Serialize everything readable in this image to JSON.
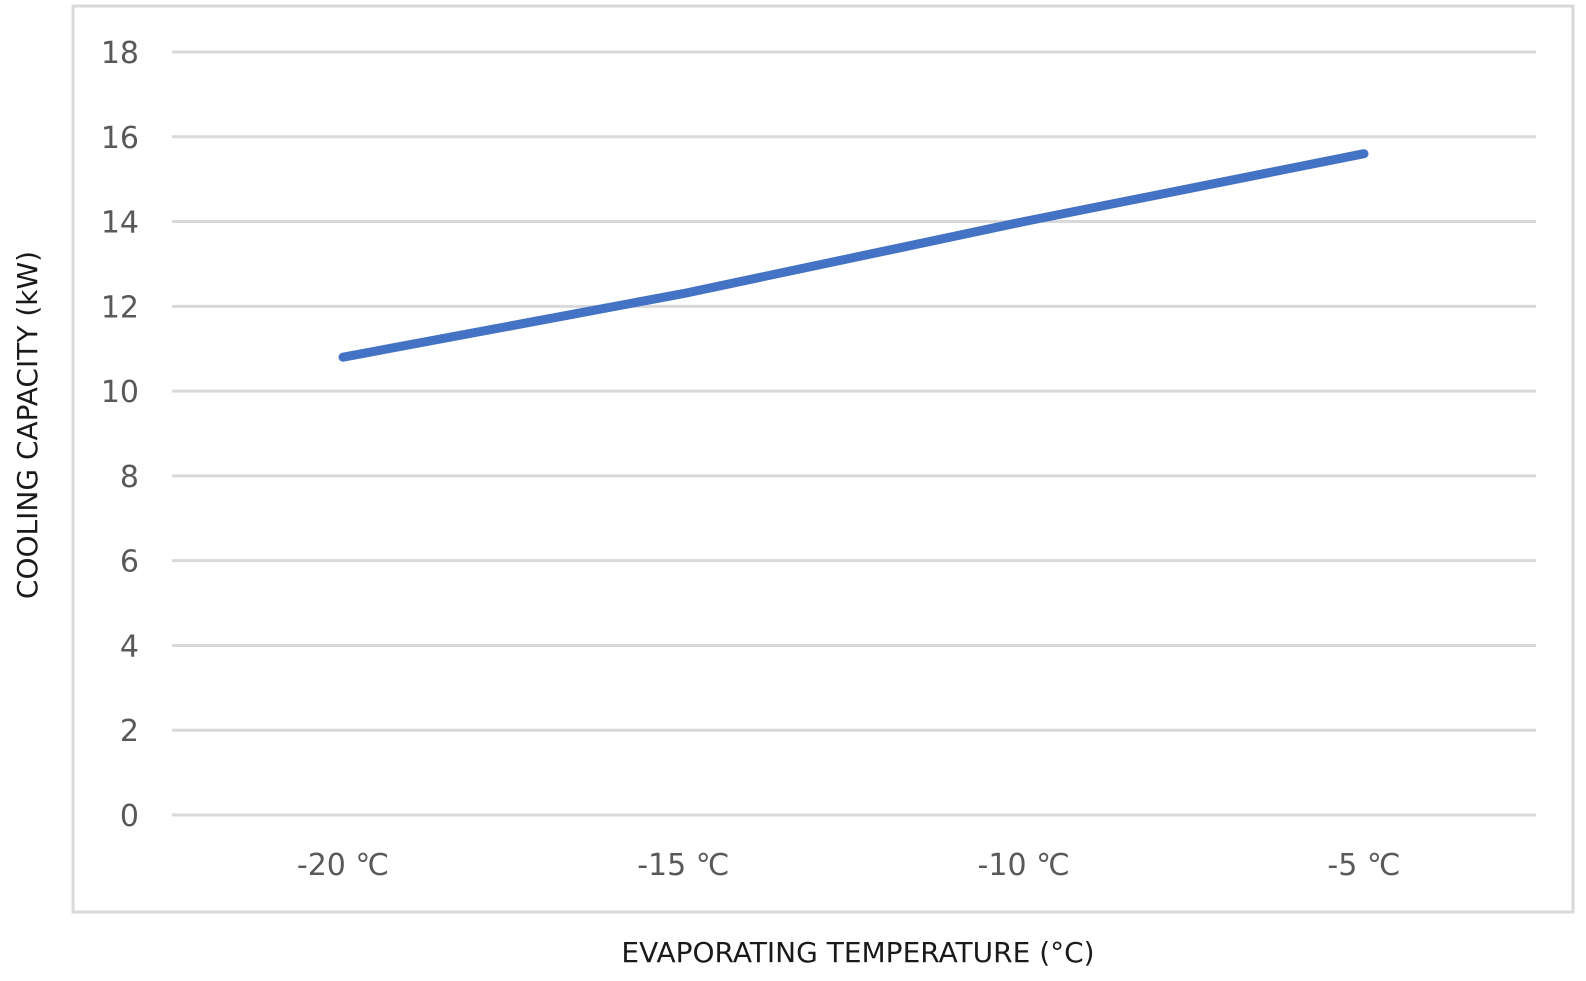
{
  "chart_data": {
    "type": "line",
    "categories": [
      "-20 ℃",
      "-15 ℃",
      "-10 ℃",
      "-5 ℃"
    ],
    "series": [
      {
        "values": [
          10.8,
          12.3,
          14.0,
          15.6
        ]
      }
    ],
    "title": "",
    "xlabel": "EVAPORATING TEMPERATURE (°C)",
    "ylabel": "COOLING CAPACITY (kW)",
    "ylim": [
      0,
      18
    ],
    "yticks": [
      "0",
      "2",
      "4",
      "6",
      "8",
      "10",
      "12",
      "14",
      "16",
      "18"
    ],
    "grid": true,
    "legend": "none",
    "colors": {
      "line": "#4472c4",
      "grid": "#d9d9d9",
      "frame": "#d9d9d9",
      "ticks": "#595959"
    }
  }
}
